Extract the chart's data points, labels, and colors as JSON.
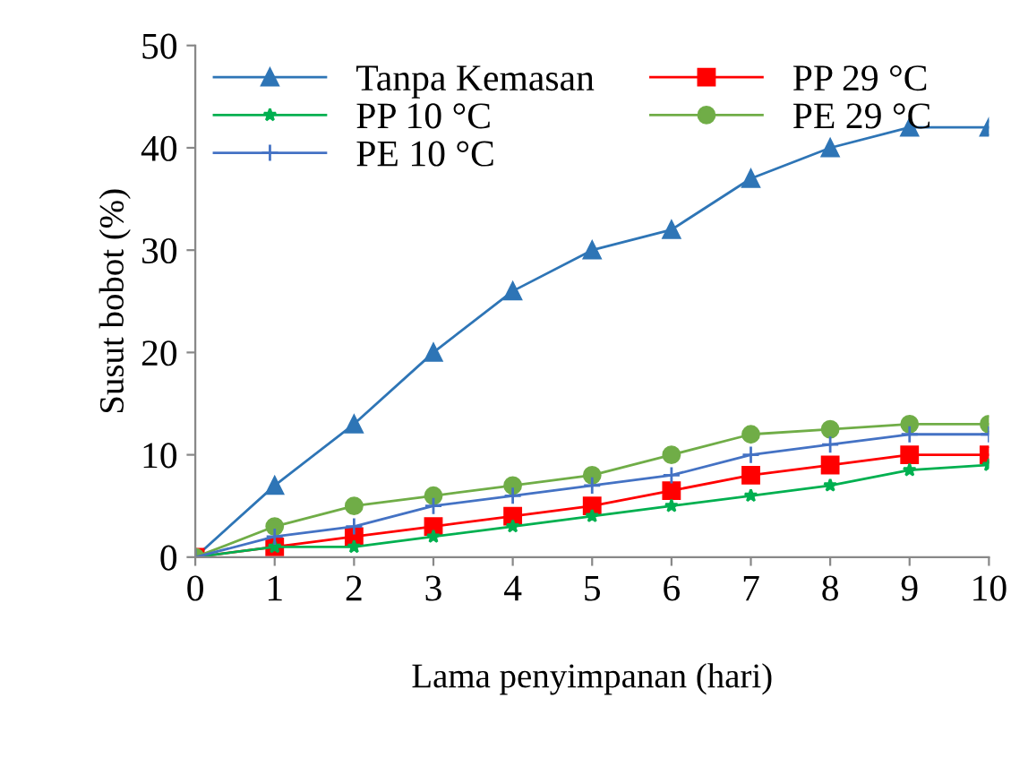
{
  "chart_data": {
    "type": "line",
    "xlabel": "Lama penyimpanan (hari)",
    "ylabel": "Susut bobot (%)",
    "x": [
      0,
      1,
      2,
      3,
      4,
      5,
      6,
      7,
      8,
      9,
      10
    ],
    "xlim": [
      0,
      10
    ],
    "xticks": [
      0,
      1,
      2,
      3,
      4,
      5,
      6,
      7,
      8,
      9,
      10
    ],
    "ylim": [
      0,
      50
    ],
    "yticks": [
      0,
      10,
      20,
      30,
      40,
      50
    ],
    "grid": false,
    "legend": "top",
    "series": [
      {
        "name": "Tanpa Kemasan",
        "color": "#2e75b6",
        "marker": "triangle",
        "values": [
          0,
          7,
          13,
          20,
          26,
          30,
          32,
          37,
          40,
          42,
          42
        ]
      },
      {
        "name": "PP 29 °C",
        "color": "#ff0000",
        "marker": "square",
        "values": [
          0,
          1,
          2,
          3,
          4,
          5,
          6.5,
          8,
          9,
          10,
          10
        ]
      },
      {
        "name": "PP 10 °C",
        "color": "#00b050",
        "marker": "star",
        "values": [
          0,
          1,
          1,
          2,
          3,
          4,
          5,
          6,
          7,
          8.5,
          9
        ]
      },
      {
        "name": "PE 29 °C",
        "color": "#70ad47",
        "marker": "circle",
        "values": [
          0,
          3,
          5,
          6,
          7,
          8,
          10,
          12,
          12.5,
          13,
          13
        ]
      },
      {
        "name": "PE 10 °C",
        "color": "#4472c4",
        "marker": "cross",
        "values": [
          0,
          2,
          3,
          5,
          6,
          7,
          8,
          10,
          11,
          12,
          12
        ]
      }
    ]
  }
}
